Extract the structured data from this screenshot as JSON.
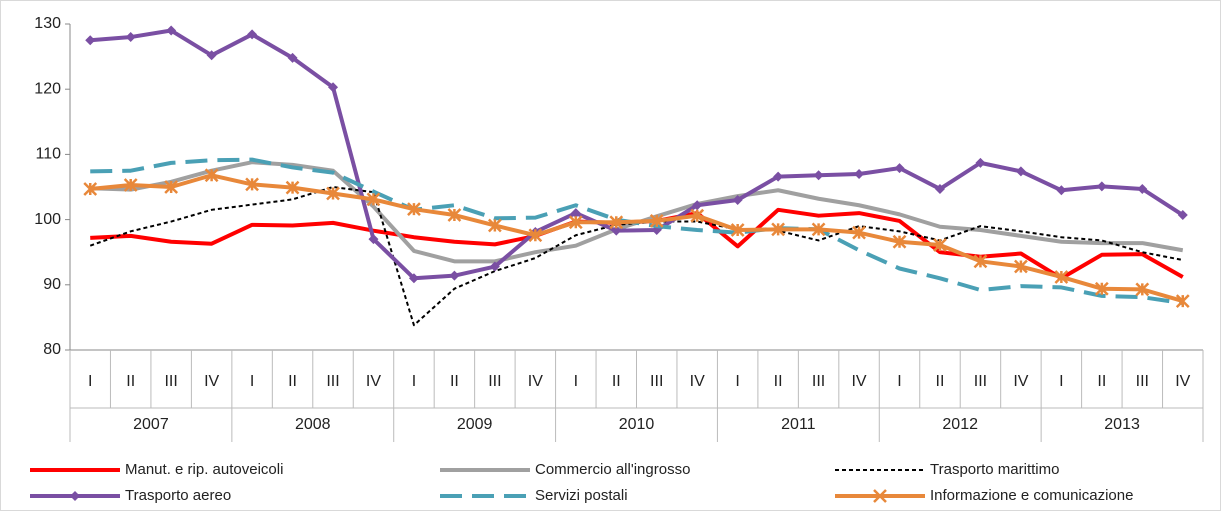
{
  "chart_data": {
    "type": "line",
    "categories": [
      "I",
      "II",
      "III",
      "IV",
      "I",
      "II",
      "III",
      "IV",
      "I",
      "II",
      "III",
      "IV",
      "I",
      "II",
      "III",
      "IV",
      "I",
      "II",
      "III",
      "IV",
      "I",
      "II",
      "III",
      "IV",
      "I",
      "II",
      "III",
      "IV"
    ],
    "years": [
      "2007",
      "2008",
      "2009",
      "2010",
      "2011",
      "2012",
      "2013"
    ],
    "ylim": [
      80,
      130
    ],
    "yticks": [
      80,
      90,
      100,
      110,
      120,
      130
    ],
    "grid": false,
    "legend": "bottom",
    "series": [
      {
        "name": "Manut. e rip. autoveicoli",
        "color": "#ff0000",
        "style": "solid",
        "marker": "none",
        "values": [
          97.2,
          97.5,
          96.6,
          96.3,
          99.2,
          99.1,
          99.5,
          98.3,
          97.3,
          96.6,
          96.2,
          97.5,
          99.7,
          99.5,
          99.8,
          101.0,
          95.9,
          101.5,
          100.6,
          101.0,
          99.8,
          95.0,
          94.3,
          94.8,
          91.0,
          94.6,
          94.7,
          91.2
        ]
      },
      {
        "name": "Commercio all'ingrosso",
        "color": "#a0a0a0",
        "style": "solid",
        "marker": "none",
        "values": [
          104.8,
          104.6,
          105.8,
          107.5,
          108.8,
          108.4,
          107.5,
          102.0,
          95.2,
          93.6,
          93.6,
          95.0,
          96.0,
          98.5,
          100.5,
          102.4,
          103.6,
          104.5,
          103.2,
          102.2,
          100.8,
          98.9,
          98.4,
          97.5,
          96.6,
          96.4,
          96.4,
          95.3
        ]
      },
      {
        "name": "Trasporto marittimo",
        "color": "#000000",
        "style": "dotted",
        "marker": "none",
        "values": [
          96.0,
          98.2,
          99.7,
          101.5,
          102.3,
          103.1,
          105.0,
          104.2,
          83.8,
          89.4,
          92.1,
          94.1,
          97.6,
          99.2,
          99.7,
          99.7,
          98.5,
          98.3,
          96.8,
          99.0,
          98.2,
          96.8,
          99.0,
          98.2,
          97.3,
          96.8,
          95.0,
          93.8
        ]
      },
      {
        "name": "Trasporto aereo",
        "color": "#7a4fa3",
        "style": "solid",
        "marker": "diamond",
        "values": [
          127.5,
          128.0,
          129.0,
          125.2,
          128.4,
          124.8,
          120.3,
          97.0,
          91.0,
          91.4,
          92.8,
          98.1,
          101.0,
          98.3,
          98.4,
          102.2,
          103.0,
          106.6,
          106.8,
          107.0,
          107.9,
          104.7,
          108.7,
          107.4,
          104.5,
          105.1,
          104.7,
          100.7
        ]
      },
      {
        "name": "Servizi postali",
        "color": "#4aa0b5",
        "style": "dashed",
        "marker": "none",
        "values": [
          107.4,
          107.5,
          108.7,
          109.1,
          109.2,
          108.0,
          107.2,
          104.3,
          101.5,
          102.2,
          100.2,
          100.3,
          102.2,
          100.0,
          99.0,
          98.4,
          98.0,
          98.7,
          98.5,
          95.3,
          92.5,
          91.0,
          89.2,
          89.8,
          89.6,
          88.3,
          88.1,
          87.2
        ]
      },
      {
        "name": "Informazione e comunicazione",
        "color": "#e8883a",
        "style": "solid",
        "marker": "x",
        "values": [
          104.7,
          105.3,
          105.0,
          106.8,
          105.4,
          104.9,
          104.0,
          103.1,
          101.6,
          100.7,
          99.1,
          97.6,
          99.6,
          99.6,
          99.8,
          100.6,
          98.4,
          98.5,
          98.5,
          98.0,
          96.6,
          96.1,
          93.6,
          92.8,
          91.2,
          89.4,
          89.3,
          87.5
        ]
      }
    ]
  }
}
